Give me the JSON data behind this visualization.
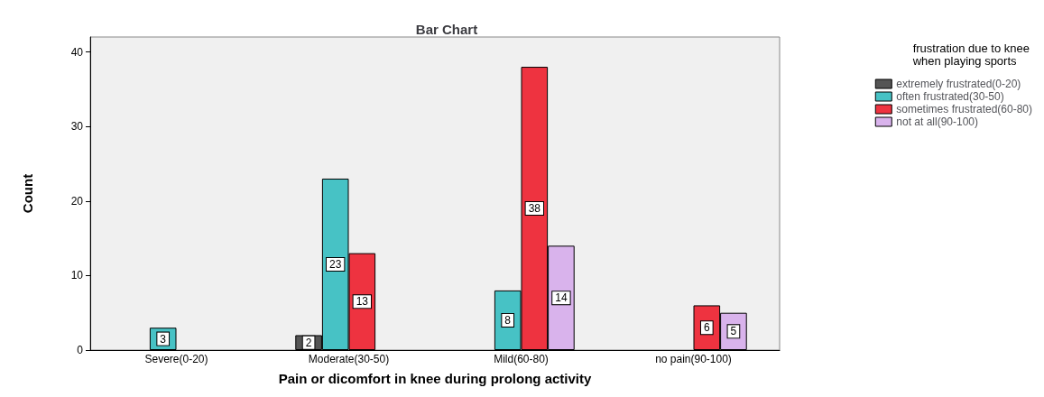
{
  "chart_data": {
    "type": "bar",
    "title": "Bar Chart",
    "xlabel": "Pain or dicomfort in knee during prolong activity",
    "ylabel": "Count",
    "legend_title": "frustration due to knee\nwhen playing sports",
    "categories": [
      "Severe(0-20)",
      "Moderate(30-50)",
      "Mild(60-80)",
      "no pain(90-100)"
    ],
    "series": [
      {
        "name": "extremely frustrated(0-20)",
        "color": "#555555",
        "values": [
          null,
          2,
          null,
          null
        ]
      },
      {
        "name": "often frustrated(30-50)",
        "color": "#47c2c5",
        "values": [
          3,
          23,
          8,
          null
        ]
      },
      {
        "name": "sometimes frustrated(60-80)",
        "color": "#ee3340",
        "values": [
          null,
          13,
          38,
          6
        ]
      },
      {
        "name": "not at all(90-100)",
        "color": "#d9b3ec",
        "values": [
          null,
          null,
          14,
          5
        ]
      }
    ],
    "ylim": [
      0,
      42
    ],
    "yticks": [
      0,
      10,
      20,
      30,
      40
    ],
    "grid": false,
    "legend": "top right",
    "data_labels": true
  }
}
